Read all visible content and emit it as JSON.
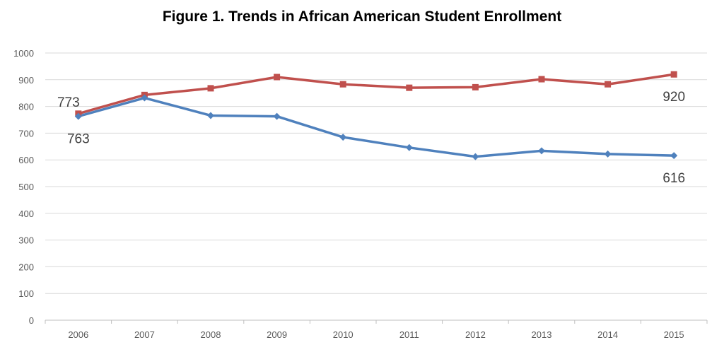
{
  "chart_data": {
    "type": "line",
    "title": "Figure 1. Trends in African American Student Enrollment",
    "xlabel": "",
    "ylabel": "",
    "categories": [
      "2006",
      "2007",
      "2008",
      "2009",
      "2010",
      "2011",
      "2012",
      "2013",
      "2014",
      "2015"
    ],
    "ylim": [
      0,
      1000
    ],
    "yticks": [
      "0",
      "100",
      "200",
      "300",
      "400",
      "500",
      "600",
      "700",
      "800",
      "900",
      "1000"
    ],
    "grid": true,
    "legend": "none",
    "series": [
      {
        "color": "#C0504D",
        "marker": "square",
        "values": [
          773,
          843,
          868,
          910,
          883,
          870,
          872,
          902,
          883,
          920
        ],
        "data_labels": [
          {
            "index": 0,
            "text": "773"
          },
          {
            "index": 9,
            "text": "920"
          }
        ]
      },
      {
        "color": "#4F81BD",
        "marker": "diamond",
        "values": [
          763,
          832,
          766,
          763,
          685,
          646,
          612,
          634,
          622,
          616
        ],
        "data_labels": [
          {
            "index": 0,
            "text": "763"
          },
          {
            "index": 9,
            "text": "616"
          }
        ]
      }
    ]
  }
}
